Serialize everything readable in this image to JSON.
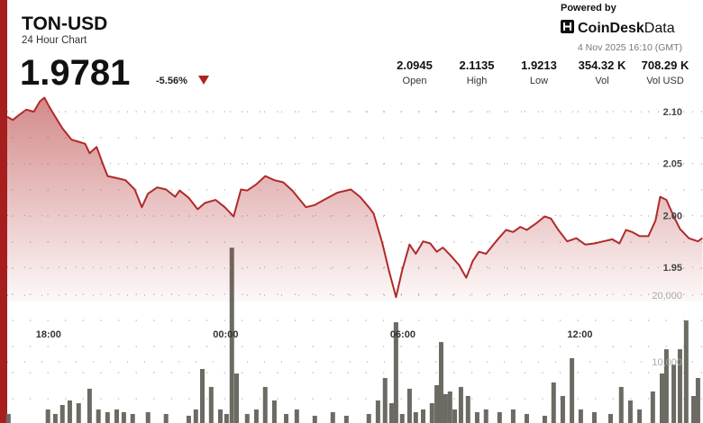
{
  "header": {
    "title": "TON-USD",
    "subtitle": "24 Hour Chart",
    "price": "1.9781",
    "change": "-5.56%",
    "stats": [
      {
        "value": "2.0945",
        "label": "Open"
      },
      {
        "value": "2.1135",
        "label": "High"
      },
      {
        "value": "1.9213",
        "label": "Low"
      },
      {
        "value": "354.32 K",
        "label": "Vol"
      },
      {
        "value": "708.29 K",
        "label": "Vol USD"
      }
    ],
    "powered_by": "Powered by",
    "brand": "CoinDesk",
    "brand_suffix": "Data",
    "timestamp": "4 Nov 2025 16:10 (GMT)"
  },
  "chart_data": [
    {
      "type": "area",
      "color": "#b02a2a",
      "x": [
        -7.4,
        -7.21,
        -6.99,
        -6.75,
        -6.5,
        -6.29,
        -6.14,
        -5.98,
        -5.77,
        -5.53,
        -5.22,
        -4.98,
        -4.76,
        -4.61,
        -4.37,
        -4.15,
        -4.0,
        -3.69,
        -3.39,
        -3.08,
        -2.84,
        -2.63,
        -2.32,
        -2.02,
        -1.71,
        -1.56,
        -1.25,
        -0.95,
        -0.7,
        -0.34,
        -0.03,
        0.27,
        0.52,
        0.73,
        1.04,
        1.34,
        1.65,
        1.95,
        2.26,
        2.72,
        3.02,
        3.33,
        3.79,
        4.24,
        4.55,
        4.85,
        5.01,
        5.31,
        5.53,
        5.77,
        5.98,
        6.23,
        6.44,
        6.69,
        6.93,
        7.15,
        7.36,
        7.6,
        7.91,
        8.15,
        8.37,
        8.58,
        8.82,
        9.07,
        9.28,
        9.5,
        9.74,
        9.98,
        10.2,
        10.5,
        10.81,
        11.02,
        11.27,
        11.57,
        11.88,
        12.18,
        12.49,
        12.79,
        13.1,
        13.34,
        13.56,
        13.77,
        14.02,
        14.32,
        14.56,
        14.72,
        14.93,
        15.18,
        15.39,
        15.69,
        16.0,
        16.15
      ],
      "values": [
        2.095,
        2.092,
        2.097,
        2.102,
        2.1,
        2.11,
        2.1135,
        2.105,
        2.095,
        2.084,
        2.073,
        2.071,
        2.069,
        2.06,
        2.066,
        2.049,
        2.038,
        2.036,
        2.034,
        2.025,
        2.008,
        2.021,
        2.027,
        2.025,
        2.018,
        2.024,
        2.017,
        2.006,
        2.012,
        2.015,
        2.008,
        1.999,
        2.025,
        2.024,
        2.03,
        2.038,
        2.034,
        2.032,
        2.024,
        2.008,
        2.01,
        2.015,
        2.022,
        2.025,
        2.018,
        2.008,
        2.002,
        1.973,
        1.947,
        1.9213,
        1.947,
        1.972,
        1.963,
        1.975,
        1.973,
        1.965,
        1.969,
        1.962,
        1.952,
        1.94,
        1.956,
        1.965,
        1.963,
        1.972,
        1.979,
        1.986,
        1.984,
        1.989,
        1.986,
        1.992,
        1.999,
        1.997,
        1.986,
        1.975,
        1.978,
        1.972,
        1.973,
        1.975,
        1.977,
        1.973,
        1.986,
        1.984,
        1.98,
        1.98,
        1.995,
        2.018,
        2.015,
        1.999,
        1.987,
        1.978,
        1.975,
        1.9781
      ],
      "xlim": [
        -7.4,
        16.17
      ],
      "xticks": [
        {
          "value": -6,
          "label": "18:00"
        },
        {
          "value": 0,
          "label": "00:00"
        },
        {
          "value": 6,
          "label": "06:00"
        },
        {
          "value": 12,
          "label": "12:00"
        }
      ],
      "ylim": [
        1.8,
        2.12
      ],
      "yticks": [
        {
          "value": 1.95,
          "label": "1.95"
        },
        {
          "value": 2.0,
          "label": "2.00"
        },
        {
          "value": 2.05,
          "label": "2.05"
        },
        {
          "value": 2.1,
          "label": "2.10"
        }
      ],
      "grid": true
    },
    {
      "type": "bar",
      "color": "#6b6b63",
      "x": [
        -7.36,
        -6.02,
        -5.77,
        -5.53,
        -5.28,
        -4.98,
        -4.61,
        -4.31,
        -4.0,
        -3.69,
        -3.45,
        -3.15,
        -2.63,
        -2.02,
        -1.25,
        -1.01,
        -0.79,
        -0.49,
        -0.18,
        0.03,
        0.21,
        0.37,
        0.73,
        1.04,
        1.34,
        1.65,
        2.05,
        2.41,
        3.02,
        3.63,
        4.09,
        4.85,
        5.16,
        5.4,
        5.62,
        5.77,
        5.98,
        6.23,
        6.44,
        6.69,
        6.99,
        7.15,
        7.3,
        7.45,
        7.6,
        7.76,
        7.97,
        8.21,
        8.52,
        8.82,
        9.28,
        9.74,
        10.2,
        10.81,
        11.11,
        11.42,
        11.73,
        12.03,
        12.49,
        13.04,
        13.4,
        13.71,
        14.02,
        14.47,
        14.78,
        14.93,
        15.18,
        15.39,
        15.6,
        15.85,
        16.0
      ],
      "values": [
        2160,
        2840,
        2160,
        3510,
        4190,
        3780,
        5950,
        2840,
        2430,
        2840,
        2430,
        2160,
        2430,
        2160,
        1890,
        2840,
        8920,
        6220,
        2840,
        2160,
        27160,
        8240,
        2160,
        2840,
        6220,
        4190,
        2160,
        2840,
        1890,
        2430,
        1890,
        2160,
        4190,
        7570,
        3780,
        15950,
        2160,
        5950,
        2430,
        2840,
        3780,
        6490,
        12970,
        5140,
        5540,
        2840,
        6220,
        4860,
        2430,
        2840,
        2430,
        2840,
        2160,
        1890,
        6890,
        4860,
        10540,
        2840,
        2430,
        2160,
        6220,
        4190,
        2840,
        5540,
        8240,
        11890,
        9590,
        11890,
        16220,
        4860,
        7570
      ],
      "xlim": [
        -7.4,
        16.17
      ],
      "ylim": [
        800,
        28000
      ],
      "yticks": [
        {
          "value": 10000,
          "label": "10,000"
        },
        {
          "value": 20000,
          "label": "20,000"
        }
      ],
      "grid": true
    }
  ]
}
